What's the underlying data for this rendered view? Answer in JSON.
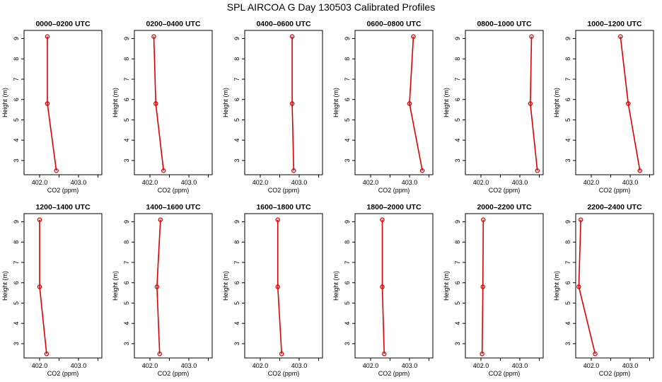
{
  "page_title": "SPL AIRCOA G  Day 130503  Calibrated Profiles",
  "chart_data": [
    {
      "type": "line",
      "title": "0000–0200 UTC",
      "xlabel": "CO2 (ppm)",
      "ylabel": "Height (m)",
      "xlim": [
        401.6,
        403.6
      ],
      "xticks": [
        402.0,
        402.5,
        403.0,
        403.5
      ],
      "xtick_labels": [
        "402.0",
        "",
        "403.0",
        ""
      ],
      "ylim": [
        2.3,
        9.4
      ],
      "yticks": [
        3,
        4,
        5,
        6,
        7,
        8,
        9
      ],
      "x": [
        402.2,
        402.2,
        402.43
      ],
      "y": [
        9.1,
        5.8,
        2.5
      ],
      "series_color": "#dd0000"
    },
    {
      "type": "line",
      "title": "0200–0400 UTC",
      "xlabel": "CO2 (ppm)",
      "ylabel": "Height (m)",
      "xlim": [
        401.6,
        403.6
      ],
      "xticks": [
        402.0,
        402.5,
        403.0,
        403.5
      ],
      "xtick_labels": [
        "402.0",
        "",
        "403.0",
        ""
      ],
      "ylim": [
        2.3,
        9.4
      ],
      "yticks": [
        3,
        4,
        5,
        6,
        7,
        8,
        9
      ],
      "x": [
        402.1,
        402.15,
        402.35
      ],
      "y": [
        9.1,
        5.8,
        2.5
      ],
      "series_color": "#dd0000"
    },
    {
      "type": "line",
      "title": "0400–0600 UTC",
      "xlabel": "CO2 (ppm)",
      "ylabel": "Height (m)",
      "xlim": [
        401.6,
        403.6
      ],
      "xticks": [
        402.0,
        402.5,
        403.0,
        403.5
      ],
      "xtick_labels": [
        "402.0",
        "",
        "403.0",
        ""
      ],
      "ylim": [
        2.3,
        9.4
      ],
      "yticks": [
        3,
        4,
        5,
        6,
        7,
        8,
        9
      ],
      "x": [
        402.82,
        402.82,
        402.86
      ],
      "y": [
        9.1,
        5.8,
        2.5
      ],
      "series_color": "#dd0000"
    },
    {
      "type": "line",
      "title": "0600–0800 UTC",
      "xlabel": "CO2 (ppm)",
      "ylabel": "Height (m)",
      "xlim": [
        401.6,
        403.6
      ],
      "xticks": [
        402.0,
        402.5,
        403.0,
        403.5
      ],
      "xtick_labels": [
        "402.0",
        "",
        "403.0",
        ""
      ],
      "ylim": [
        2.3,
        9.4
      ],
      "yticks": [
        3,
        4,
        5,
        6,
        7,
        8,
        9
      ],
      "x": [
        403.1,
        403.0,
        403.33
      ],
      "y": [
        9.1,
        5.8,
        2.5
      ],
      "series_color": "#dd0000"
    },
    {
      "type": "line",
      "title": "0800–1000 UTC",
      "xlabel": "CO2 (ppm)",
      "ylabel": "Height (m)",
      "xlim": [
        401.6,
        403.6
      ],
      "xticks": [
        402.0,
        402.5,
        403.0,
        403.5
      ],
      "xtick_labels": [
        "402.0",
        "",
        "403.0",
        ""
      ],
      "ylim": [
        2.3,
        9.4
      ],
      "yticks": [
        3,
        4,
        5,
        6,
        7,
        8,
        9
      ],
      "x": [
        403.3,
        403.27,
        403.45
      ],
      "y": [
        9.1,
        5.8,
        2.5
      ],
      "series_color": "#dd0000"
    },
    {
      "type": "line",
      "title": "1000–1200 UTC",
      "xlabel": "CO2 (ppm)",
      "ylabel": "Height (m)",
      "xlim": [
        401.6,
        403.6
      ],
      "xticks": [
        402.0,
        402.5,
        403.0,
        403.5
      ],
      "xtick_labels": [
        "402.0",
        "",
        "403.0",
        ""
      ],
      "ylim": [
        2.3,
        9.4
      ],
      "yticks": [
        3,
        4,
        5,
        6,
        7,
        8,
        9
      ],
      "x": [
        402.75,
        402.95,
        403.25
      ],
      "y": [
        9.1,
        5.8,
        2.5
      ],
      "series_color": "#dd0000"
    },
    {
      "type": "line",
      "title": "1200–1400 UTC",
      "xlabel": "CO2 (ppm)",
      "ylabel": "Height (m)",
      "xlim": [
        401.6,
        403.6
      ],
      "xticks": [
        402.0,
        402.5,
        403.0,
        403.5
      ],
      "xtick_labels": [
        "402.0",
        "",
        "403.0",
        ""
      ],
      "ylim": [
        2.3,
        9.4
      ],
      "yticks": [
        3,
        4,
        5,
        6,
        7,
        8,
        9
      ],
      "x": [
        402.0,
        402.0,
        402.18
      ],
      "y": [
        9.1,
        5.8,
        2.5
      ],
      "series_color": "#dd0000"
    },
    {
      "type": "line",
      "title": "1400–1600 UTC",
      "xlabel": "CO2 (ppm)",
      "ylabel": "Height (m)",
      "xlim": [
        401.6,
        403.6
      ],
      "xticks": [
        402.0,
        402.5,
        403.0,
        403.5
      ],
      "xtick_labels": [
        "402.0",
        "",
        "403.0",
        ""
      ],
      "ylim": [
        2.3,
        9.4
      ],
      "yticks": [
        3,
        4,
        5,
        6,
        7,
        8,
        9
      ],
      "x": [
        402.27,
        402.18,
        402.25
      ],
      "y": [
        9.1,
        5.8,
        2.5
      ],
      "series_color": "#dd0000"
    },
    {
      "type": "line",
      "title": "1600–1800 UTC",
      "xlabel": "CO2 (ppm)",
      "ylabel": "Height (m)",
      "xlim": [
        401.6,
        403.6
      ],
      "xticks": [
        402.0,
        402.5,
        403.0,
        403.5
      ],
      "xtick_labels": [
        "402.0",
        "",
        "403.0",
        ""
      ],
      "ylim": [
        2.3,
        9.4
      ],
      "yticks": [
        3,
        4,
        5,
        6,
        7,
        8,
        9
      ],
      "x": [
        402.45,
        402.45,
        402.55
      ],
      "y": [
        9.1,
        5.8,
        2.5
      ],
      "series_color": "#dd0000"
    },
    {
      "type": "line",
      "title": "1800–2000 UTC",
      "xlabel": "CO2 (ppm)",
      "ylabel": "Height (m)",
      "xlim": [
        401.6,
        403.6
      ],
      "xticks": [
        402.0,
        402.5,
        403.0,
        403.5
      ],
      "xtick_labels": [
        "402.0",
        "",
        "403.0",
        ""
      ],
      "ylim": [
        2.3,
        9.4
      ],
      "yticks": [
        3,
        4,
        5,
        6,
        7,
        8,
        9
      ],
      "x": [
        402.3,
        402.3,
        402.35
      ],
      "y": [
        9.1,
        5.8,
        2.5
      ],
      "series_color": "#dd0000"
    },
    {
      "type": "line",
      "title": "2000–2200 UTC",
      "xlabel": "CO2 (ppm)",
      "ylabel": "Height (m)",
      "xlim": [
        401.6,
        403.6
      ],
      "xticks": [
        402.0,
        402.5,
        403.0,
        403.5
      ],
      "xtick_labels": [
        "402.0",
        "",
        "403.0",
        ""
      ],
      "ylim": [
        2.3,
        9.4
      ],
      "yticks": [
        3,
        4,
        5,
        6,
        7,
        8,
        9
      ],
      "x": [
        402.06,
        402.05,
        402.03
      ],
      "y": [
        9.1,
        5.8,
        2.5
      ],
      "series_color": "#dd0000"
    },
    {
      "type": "line",
      "title": "2200–2400 UTC",
      "xlabel": "CO2 (ppm)",
      "ylabel": "Height (m)",
      "xlim": [
        401.6,
        403.6
      ],
      "xticks": [
        402.0,
        402.5,
        403.0,
        403.5
      ],
      "xtick_labels": [
        "402.0",
        "",
        "403.0",
        ""
      ],
      "ylim": [
        2.3,
        9.4
      ],
      "yticks": [
        3,
        4,
        5,
        6,
        7,
        8,
        9
      ],
      "x": [
        401.73,
        401.68,
        402.1
      ],
      "y": [
        9.1,
        5.8,
        2.5
      ],
      "series_color": "#dd0000"
    }
  ]
}
